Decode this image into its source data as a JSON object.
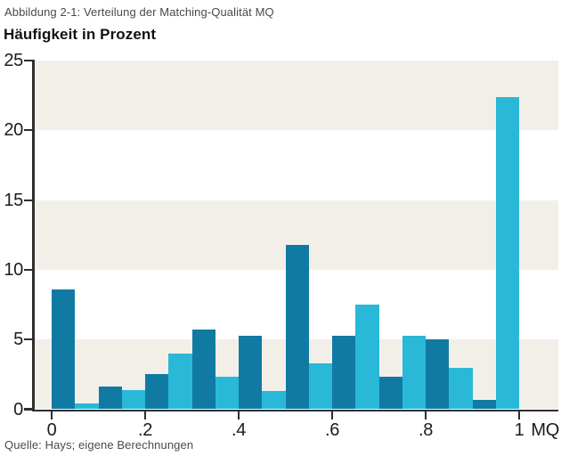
{
  "figure": {
    "caption": "Abbildung 2-1: Verteilung der Matching-Qualität MQ",
    "heading": "Häufigkeit in Prozent",
    "source": "Quelle: Hays; eigene Berechnungen"
  },
  "chart_data": {
    "type": "bar",
    "subtype": "histogram",
    "title": "Abbildung 2-1: Verteilung der Matching-Qualität MQ",
    "ylabel": "Häufigkeit in Prozent",
    "xlabel": "MQ",
    "ylim": [
      0,
      25
    ],
    "xlim_data": [
      0,
      1
    ],
    "yticks": [
      0,
      5,
      10,
      15,
      20,
      25
    ],
    "xticks": [
      {
        "value": 0,
        "label": "0"
      },
      {
        "value": 0.2,
        "label": ".2"
      },
      {
        "value": 0.4,
        "label": ".4"
      },
      {
        "value": 0.6,
        "label": ".6"
      },
      {
        "value": 0.8,
        "label": ".8"
      },
      {
        "value": 1,
        "label": "1"
      }
    ],
    "bin_width": 0.05,
    "bins": [
      [
        0,
        0.05
      ],
      [
        0.05,
        0.1
      ],
      [
        0.1,
        0.15
      ],
      [
        0.15,
        0.2
      ],
      [
        0.2,
        0.25
      ],
      [
        0.25,
        0.3
      ],
      [
        0.3,
        0.35
      ],
      [
        0.35,
        0.4
      ],
      [
        0.4,
        0.45
      ],
      [
        0.45,
        0.5
      ],
      [
        0.5,
        0.55
      ],
      [
        0.55,
        0.6
      ],
      [
        0.6,
        0.65
      ],
      [
        0.65,
        0.7
      ],
      [
        0.7,
        0.75
      ],
      [
        0.75,
        0.8
      ],
      [
        0.8,
        0.85
      ],
      [
        0.85,
        0.9
      ],
      [
        0.9,
        0.95
      ],
      [
        0.95,
        1
      ]
    ],
    "values": [
      8.6,
      0.4,
      1.6,
      1.4,
      2.5,
      4.0,
      5.7,
      2.3,
      5.3,
      1.3,
      11.8,
      3.3,
      5.3,
      7.5,
      2.3,
      5.3,
      5.0,
      3.0,
      0.7,
      22.4
    ],
    "bar_colors_alternating": [
      "#117aa3",
      "#2ab8d9"
    ],
    "background_bands": {
      "color": "#f2efe9",
      "ranges": [
        [
          0,
          5
        ],
        [
          10,
          15
        ],
        [
          20,
          25
        ]
      ]
    },
    "axis_color": "#2e2e2e",
    "grid": "alternating horizontal background bands, no gridlines",
    "legend": "none"
  }
}
